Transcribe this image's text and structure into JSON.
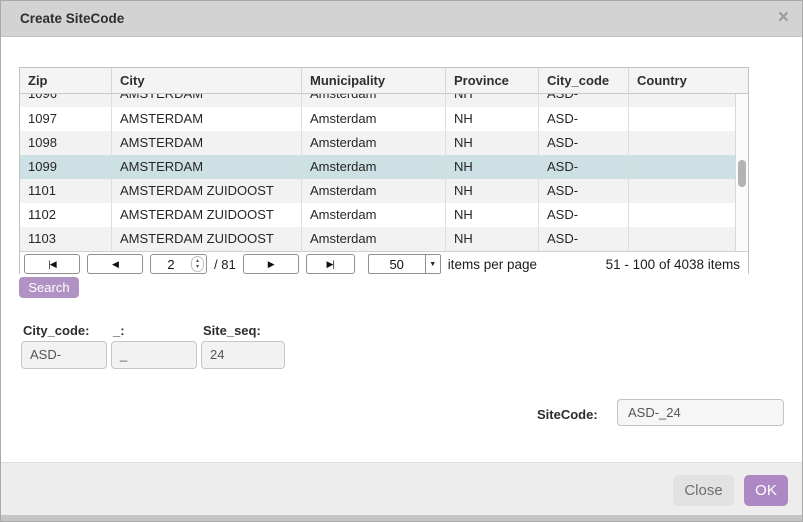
{
  "dialog": {
    "title": "Create SiteCode",
    "close_glyph": "×"
  },
  "table": {
    "columns": [
      "Zip",
      "City",
      "Municipality",
      "Province",
      "City_code",
      "Country"
    ],
    "partial_row": {
      "zip": "1096",
      "city": "AMSTERDAM",
      "municipality": "Amsterdam",
      "province": "NH",
      "city_code": "ASD-",
      "country": ""
    },
    "rows": [
      {
        "zip": "1097",
        "city": "AMSTERDAM",
        "municipality": "Amsterdam",
        "province": "NH",
        "city_code": "ASD-",
        "country": ""
      },
      {
        "zip": "1098",
        "city": "AMSTERDAM",
        "municipality": "Amsterdam",
        "province": "NH",
        "city_code": "ASD-",
        "country": ""
      },
      {
        "zip": "1099",
        "city": "AMSTERDAM",
        "municipality": "Amsterdam",
        "province": "NH",
        "city_code": "ASD-",
        "country": ""
      },
      {
        "zip": "1101",
        "city": "AMSTERDAM ZUIDOOST",
        "municipality": "Amsterdam",
        "province": "NH",
        "city_code": "ASD-",
        "country": ""
      },
      {
        "zip": "1102",
        "city": "AMSTERDAM ZUIDOOST",
        "municipality": "Amsterdam",
        "province": "NH",
        "city_code": "ASD-",
        "country": ""
      },
      {
        "zip": "1103",
        "city": "AMSTERDAM ZUIDOOST",
        "municipality": "Amsterdam",
        "province": "NH",
        "city_code": "ASD-",
        "country": ""
      }
    ],
    "selected_zip": "1099"
  },
  "pager": {
    "first_icon": "|◀",
    "prev_icon": "◀",
    "page_value": "2",
    "stepper_up": "▴",
    "stepper_down": "▾",
    "total_pages_label": "/ 81",
    "next_icon": "▶",
    "last_icon": "▶|",
    "page_size_value": "50",
    "select_arrow": "▼",
    "items_per_page_label": "items per page",
    "range_label": "51 - 100 of 4038 items"
  },
  "search": {
    "button_label": "Search"
  },
  "form": {
    "city_code": {
      "label": "City_code:",
      "value": "ASD-"
    },
    "separator": {
      "label": "_:",
      "value": "_"
    },
    "site_seq": {
      "label": "Site_seq:",
      "value": "24"
    },
    "site_code": {
      "label": "SiteCode:",
      "value": "ASD-_24"
    }
  },
  "footer": {
    "close_label": "Close",
    "ok_label": "OK"
  },
  "colors": {
    "accent_purple": "#b192c4",
    "selected_row": "#cde0e3",
    "titlebar": "#d3d3d3"
  }
}
